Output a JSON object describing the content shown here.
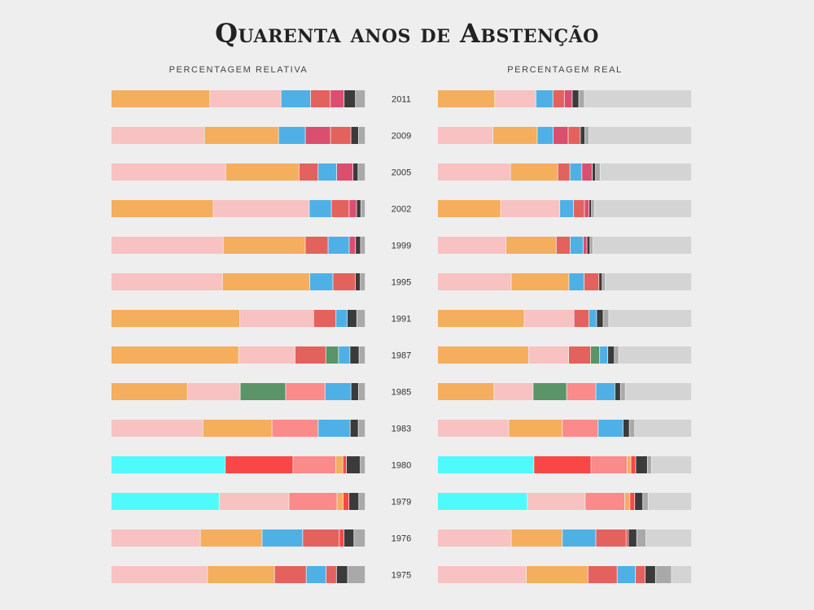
{
  "title": "Quarenta anos de Abstenção",
  "panels": {
    "left_title": "PERCENTAGEM RELATIVA",
    "right_title": "PERCENTAGEM REAL"
  },
  "colors": {
    "orange": "#f4ae5e",
    "pink": "#f7c2c1",
    "blue": "#4fb0e6",
    "red": "#e3625d",
    "magenta": "#db4e6f",
    "green": "#5a9468",
    "salmon": "#fb8a8a",
    "cyan": "#4ffafc",
    "brightred": "#f94747",
    "dark": "#3b3b3b",
    "grey": "#a9a9a9",
    "abstention": "#d4d4d4"
  },
  "chart_data": {
    "type": "bar",
    "stacked": true,
    "orientation": "horizontal",
    "unit": "percent",
    "rows": [
      {
        "year": "2011",
        "relative": [
          [
            "orange",
            38.8
          ],
          [
            "pink",
            28.0
          ],
          [
            "blue",
            11.6
          ],
          [
            "red",
            7.8
          ],
          [
            "magenta",
            5.4
          ],
          [
            "dark",
            4.5
          ],
          [
            "grey",
            3.8
          ]
        ],
        "real": [
          [
            "orange",
            22.5
          ],
          [
            "pink",
            16.2
          ],
          [
            "blue",
            6.7
          ],
          [
            "red",
            4.5
          ],
          [
            "magenta",
            3.1
          ],
          [
            "dark",
            2.6
          ],
          [
            "grey",
            2.2
          ],
          [
            "abstention",
            42.2
          ]
        ]
      },
      {
        "year": "2009",
        "relative": [
          [
            "pink",
            36.6
          ],
          [
            "orange",
            29.1
          ],
          [
            "blue",
            10.5
          ],
          [
            "magenta",
            9.9
          ],
          [
            "red",
            8.0
          ],
          [
            "dark",
            3.0
          ],
          [
            "grey",
            2.6
          ]
        ],
        "real": [
          [
            "pink",
            21.8
          ],
          [
            "orange",
            17.4
          ],
          [
            "blue",
            6.3
          ],
          [
            "magenta",
            5.9
          ],
          [
            "red",
            4.8
          ],
          [
            "dark",
            1.8
          ],
          [
            "grey",
            1.6
          ],
          [
            "abstention",
            40.4
          ]
        ]
      },
      {
        "year": "2005",
        "relative": [
          [
            "pink",
            45.0
          ],
          [
            "orange",
            28.8
          ],
          [
            "red",
            7.5
          ],
          [
            "blue",
            7.3
          ],
          [
            "magenta",
            6.4
          ],
          [
            "dark",
            2.0
          ],
          [
            "grey",
            2.8
          ]
        ],
        "real": [
          [
            "pink",
            28.7
          ],
          [
            "orange",
            18.6
          ],
          [
            "red",
            4.8
          ],
          [
            "blue",
            4.7
          ],
          [
            "magenta",
            4.1
          ],
          [
            "dark",
            1.3
          ],
          [
            "grey",
            1.8
          ],
          [
            "abstention",
            36.0
          ]
        ]
      },
      {
        "year": "2002",
        "relative": [
          [
            "orange",
            40.2
          ],
          [
            "pink",
            37.8
          ],
          [
            "blue",
            8.7
          ],
          [
            "red",
            7.0
          ],
          [
            "magenta",
            2.9
          ],
          [
            "dark",
            1.7
          ],
          [
            "grey",
            1.7
          ]
        ],
        "real": [
          [
            "orange",
            24.8
          ],
          [
            "pink",
            23.3
          ],
          [
            "blue",
            5.4
          ],
          [
            "red",
            4.3
          ],
          [
            "magenta",
            1.8
          ],
          [
            "dark",
            1.0
          ],
          [
            "grey",
            1.1
          ],
          [
            "abstention",
            38.3
          ]
        ]
      },
      {
        "year": "1999",
        "relative": [
          [
            "pink",
            44.1
          ],
          [
            "orange",
            32.3
          ],
          [
            "red",
            9.0
          ],
          [
            "blue",
            8.3
          ],
          [
            "magenta",
            2.5
          ],
          [
            "dark",
            2.0
          ],
          [
            "grey",
            1.8
          ]
        ],
        "real": [
          [
            "pink",
            26.9
          ],
          [
            "orange",
            19.8
          ],
          [
            "red",
            5.5
          ],
          [
            "blue",
            5.1
          ],
          [
            "magenta",
            1.5
          ],
          [
            "dark",
            1.2
          ],
          [
            "grey",
            1.1
          ],
          [
            "abstention",
            38.9
          ]
        ]
      },
      {
        "year": "1995",
        "relative": [
          [
            "pink",
            43.8
          ],
          [
            "orange",
            34.4
          ],
          [
            "blue",
            9.1
          ],
          [
            "red",
            8.8
          ],
          [
            "dark",
            2.0
          ],
          [
            "grey",
            1.9
          ]
        ],
        "real": [
          [
            "pink",
            29.0
          ],
          [
            "orange",
            22.7
          ],
          [
            "blue",
            6.0
          ],
          [
            "red",
            5.8
          ],
          [
            "dark",
            1.3
          ],
          [
            "grey",
            1.2
          ],
          [
            "abstention",
            34.0
          ]
        ]
      },
      {
        "year": "1991",
        "relative": [
          [
            "orange",
            50.6
          ],
          [
            "pink",
            29.1
          ],
          [
            "red",
            8.8
          ],
          [
            "blue",
            4.4
          ],
          [
            "dark",
            3.8
          ],
          [
            "grey",
            3.3
          ]
        ],
        "real": [
          [
            "orange",
            34.1
          ],
          [
            "pink",
            19.6
          ],
          [
            "red",
            5.9
          ],
          [
            "blue",
            3.0
          ],
          [
            "dark",
            2.6
          ],
          [
            "grey",
            2.2
          ],
          [
            "abstention",
            32.6
          ]
        ]
      },
      {
        "year": "1987",
        "relative": [
          [
            "orange",
            50.2
          ],
          [
            "pink",
            22.2
          ],
          [
            "red",
            12.1
          ],
          [
            "green",
            5.0
          ],
          [
            "blue",
            4.5
          ],
          [
            "dark",
            3.6
          ],
          [
            "grey",
            2.4
          ]
        ],
        "real": [
          [
            "orange",
            35.8
          ],
          [
            "pink",
            15.8
          ],
          [
            "red",
            8.6
          ],
          [
            "green",
            3.6
          ],
          [
            "blue",
            3.2
          ],
          [
            "dark",
            2.6
          ],
          [
            "grey",
            1.7
          ],
          [
            "abstention",
            28.7
          ]
        ]
      },
      {
        "year": "1985",
        "relative": [
          [
            "orange",
            30.0
          ],
          [
            "pink",
            20.8
          ],
          [
            "green",
            17.9
          ],
          [
            "salmon",
            15.5
          ],
          [
            "blue",
            10.2
          ],
          [
            "dark",
            3.0
          ],
          [
            "grey",
            2.6
          ]
        ],
        "real": [
          [
            "orange",
            22.2
          ],
          [
            "pink",
            15.4
          ],
          [
            "green",
            13.2
          ],
          [
            "salmon",
            11.5
          ],
          [
            "blue",
            7.5
          ],
          [
            "dark",
            2.2
          ],
          [
            "grey",
            1.9
          ],
          [
            "abstention",
            26.1
          ]
        ]
      },
      {
        "year": "1983",
        "relative": [
          [
            "pink",
            36.1
          ],
          [
            "orange",
            27.2
          ],
          [
            "salmon",
            18.2
          ],
          [
            "blue",
            12.6
          ],
          [
            "dark",
            3.2
          ],
          [
            "grey",
            2.7
          ]
        ],
        "real": [
          [
            "pink",
            28.0
          ],
          [
            "orange",
            21.1
          ],
          [
            "salmon",
            14.1
          ],
          [
            "blue",
            9.8
          ],
          [
            "dark",
            2.5
          ],
          [
            "grey",
            2.1
          ],
          [
            "abstention",
            22.4
          ]
        ]
      },
      {
        "year": "1980",
        "relative": [
          [
            "cyan",
            44.9
          ],
          [
            "brightred",
            26.7
          ],
          [
            "salmon",
            16.8
          ],
          [
            "orange",
            2.8
          ],
          [
            "brightred",
            1.4
          ],
          [
            "dark",
            5.5
          ],
          [
            "grey",
            1.9
          ]
        ],
        "real": [
          [
            "cyan",
            37.9
          ],
          [
            "brightred",
            22.5
          ],
          [
            "salmon",
            14.2
          ],
          [
            "orange",
            1.5
          ],
          [
            "brightred",
            1.9
          ],
          [
            "dark",
            4.6
          ],
          [
            "grey",
            1.6
          ],
          [
            "abstention",
            15.8
          ]
        ]
      },
      {
        "year": "1979",
        "relative": [
          [
            "cyan",
            42.5
          ],
          [
            "pink",
            27.5
          ],
          [
            "salmon",
            18.9
          ],
          [
            "orange",
            2.4
          ],
          [
            "brightred",
            2.3
          ],
          [
            "dark",
            3.9
          ],
          [
            "grey",
            2.5
          ]
        ],
        "real": [
          [
            "cyan",
            35.3
          ],
          [
            "pink",
            22.8
          ],
          [
            "salmon",
            15.6
          ],
          [
            "orange",
            2.0
          ],
          [
            "brightred",
            1.9
          ],
          [
            "dark",
            3.2
          ],
          [
            "grey",
            2.1
          ],
          [
            "abstention",
            17.1
          ]
        ]
      },
      {
        "year": "1976",
        "relative": [
          [
            "pink",
            35.1
          ],
          [
            "orange",
            24.3
          ],
          [
            "blue",
            16.0
          ],
          [
            "red",
            14.4
          ],
          [
            "brightred",
            1.8
          ],
          [
            "dark",
            4.0
          ],
          [
            "grey",
            4.4
          ]
        ],
        "real": [
          [
            "pink",
            29.0
          ],
          [
            "orange",
            20.1
          ],
          [
            "blue",
            13.2
          ],
          [
            "red",
            11.9
          ],
          [
            "brightred",
            0.9
          ],
          [
            "dark",
            3.3
          ],
          [
            "grey",
            3.6
          ],
          [
            "abstention",
            18.0
          ]
        ]
      },
      {
        "year": "1975",
        "relative": [
          [
            "pink",
            37.9
          ],
          [
            "orange",
            26.4
          ],
          [
            "red",
            12.5
          ],
          [
            "blue",
            7.8
          ],
          [
            "red",
            4.1
          ],
          [
            "dark",
            4.4
          ],
          [
            "grey",
            6.9
          ]
        ],
        "real": [
          [
            "pink",
            34.9
          ],
          [
            "orange",
            24.3
          ],
          [
            "red",
            11.5
          ],
          [
            "blue",
            7.2
          ],
          [
            "red",
            3.8
          ],
          [
            "dark",
            4.1
          ],
          [
            "grey",
            6.3
          ],
          [
            "abstention",
            7.9
          ]
        ]
      }
    ]
  }
}
